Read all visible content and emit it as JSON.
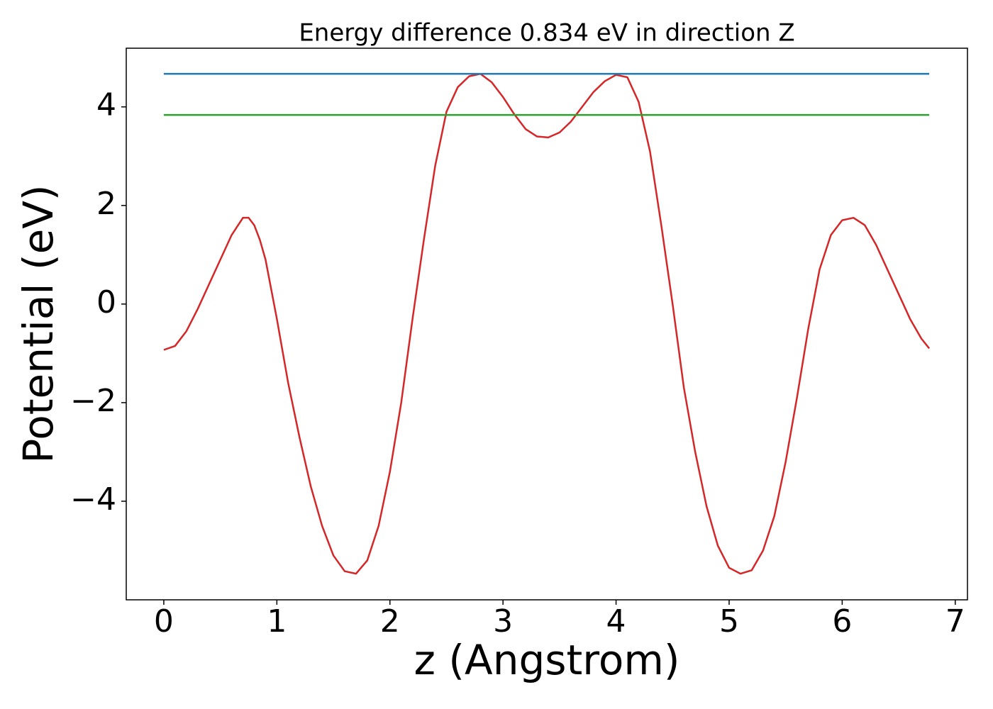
{
  "chart_data": {
    "type": "line",
    "title": "Energy difference 0.834 eV in direction Z",
    "xlabel": "z (Angstrom)",
    "ylabel": "Potential (eV)",
    "xlim": [
      -0.332,
      7.108
    ],
    "ylim": [
      -6.0,
      5.19
    ],
    "xticks": [
      0,
      1,
      2,
      3,
      4,
      5,
      6,
      7
    ],
    "yticks": [
      {
        "value": -4,
        "label": "−4"
      },
      {
        "value": -2,
        "label": "−2"
      },
      0,
      2,
      4
    ],
    "grid": false,
    "series": [
      {
        "color": "#d62728",
        "x": [
          0,
          0.1,
          0.2,
          0.3,
          0.4,
          0.5,
          0.6,
          0.7,
          0.75,
          0.8,
          0.85,
          0.9,
          1.0,
          1.1,
          1.2,
          1.3,
          1.4,
          1.5,
          1.6,
          1.7,
          1.8,
          1.9,
          2.0,
          2.1,
          2.2,
          2.3,
          2.4,
          2.5,
          2.6,
          2.7,
          2.8,
          2.9,
          3.0,
          3.1,
          3.2,
          3.3,
          3.4,
          3.5,
          3.6,
          3.7,
          3.8,
          3.9,
          4.0,
          4.1,
          4.2,
          4.3,
          4.4,
          4.5,
          4.6,
          4.7,
          4.8,
          4.9,
          5.0,
          5.1,
          5.2,
          5.3,
          5.4,
          5.5,
          5.6,
          5.7,
          5.8,
          5.9,
          6.0,
          6.1,
          6.2,
          6.3,
          6.4,
          6.5,
          6.6,
          6.7,
          6.77
        ],
        "values": [
          -0.93,
          -0.85,
          -0.55,
          -0.1,
          0.4,
          0.9,
          1.4,
          1.75,
          1.75,
          1.6,
          1.3,
          0.9,
          -0.3,
          -1.6,
          -2.7,
          -3.7,
          -4.5,
          -5.1,
          -5.42,
          -5.47,
          -5.2,
          -4.5,
          -3.4,
          -2.0,
          -0.3,
          1.3,
          2.8,
          3.9,
          4.4,
          4.62,
          4.67,
          4.5,
          4.2,
          3.85,
          3.55,
          3.4,
          3.38,
          3.48,
          3.7,
          4.0,
          4.3,
          4.52,
          4.65,
          4.6,
          4.1,
          3.1,
          1.6,
          0.0,
          -1.7,
          -3.0,
          -4.1,
          -4.9,
          -5.35,
          -5.47,
          -5.4,
          -5.0,
          -4.3,
          -3.2,
          -1.9,
          -0.5,
          0.7,
          1.4,
          1.7,
          1.75,
          1.6,
          1.2,
          0.7,
          0.2,
          -0.3,
          -0.7,
          -0.9
        ]
      },
      {
        "color": "#1f77b4",
        "x": [
          0,
          6.77
        ],
        "values": [
          4.67,
          4.67
        ]
      },
      {
        "color": "#2ca02c",
        "x": [
          0,
          6.77
        ],
        "values": [
          3.836,
          3.836
        ]
      }
    ]
  }
}
